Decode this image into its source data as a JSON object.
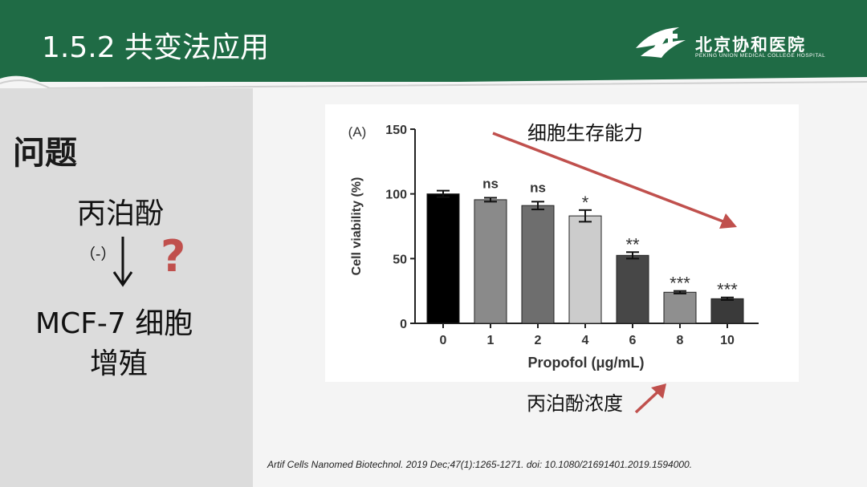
{
  "header": {
    "title": "1.5.2 共变法应用",
    "logo_cn": "北京协和医院",
    "logo_en": "PEKING UNION MEDICAL COLLEGE HOSPITAL"
  },
  "left": {
    "heading": "问题",
    "drug": "丙泊酚",
    "effect": "（-）",
    "question": "?",
    "target_line1": "MCF-7 细胞",
    "target_line2": "增殖"
  },
  "annotations": {
    "top": "细胞生存能力",
    "bottom": "丙泊酚浓度",
    "arrow_color": "#c0504d"
  },
  "citation": "Artif Cells Nanomed Biotechnol. 2019 Dec;47(1):1265-1271. doi: 10.1080/21691401.2019.1594000.",
  "colors": {
    "header_bg": "#1f6b45",
    "accent_red": "#c0504d"
  },
  "chart_data": {
    "type": "bar",
    "panel_label": "(A)",
    "categories": [
      "0",
      "1",
      "2",
      "4",
      "6",
      "8",
      "10"
    ],
    "values": [
      100,
      95.5,
      91,
      83,
      52.5,
      24,
      19
    ],
    "errors": [
      2.5,
      1.5,
      3,
      4.5,
      2.5,
      1,
      1
    ],
    "significance": [
      "",
      "ns",
      "ns",
      "*",
      "**",
      "***",
      "***"
    ],
    "bar_colors": [
      "#000000",
      "#8a8a8a",
      "#6e6e6e",
      "#cccccc",
      "#474747",
      "#8f8f8f",
      "#3a3a3a"
    ],
    "xlabel": "Propofol (μg/mL)",
    "ylabel": "Cell viability (%)",
    "yticks": [
      "0",
      "50",
      "100",
      "150"
    ],
    "ylim": [
      0,
      150
    ]
  }
}
